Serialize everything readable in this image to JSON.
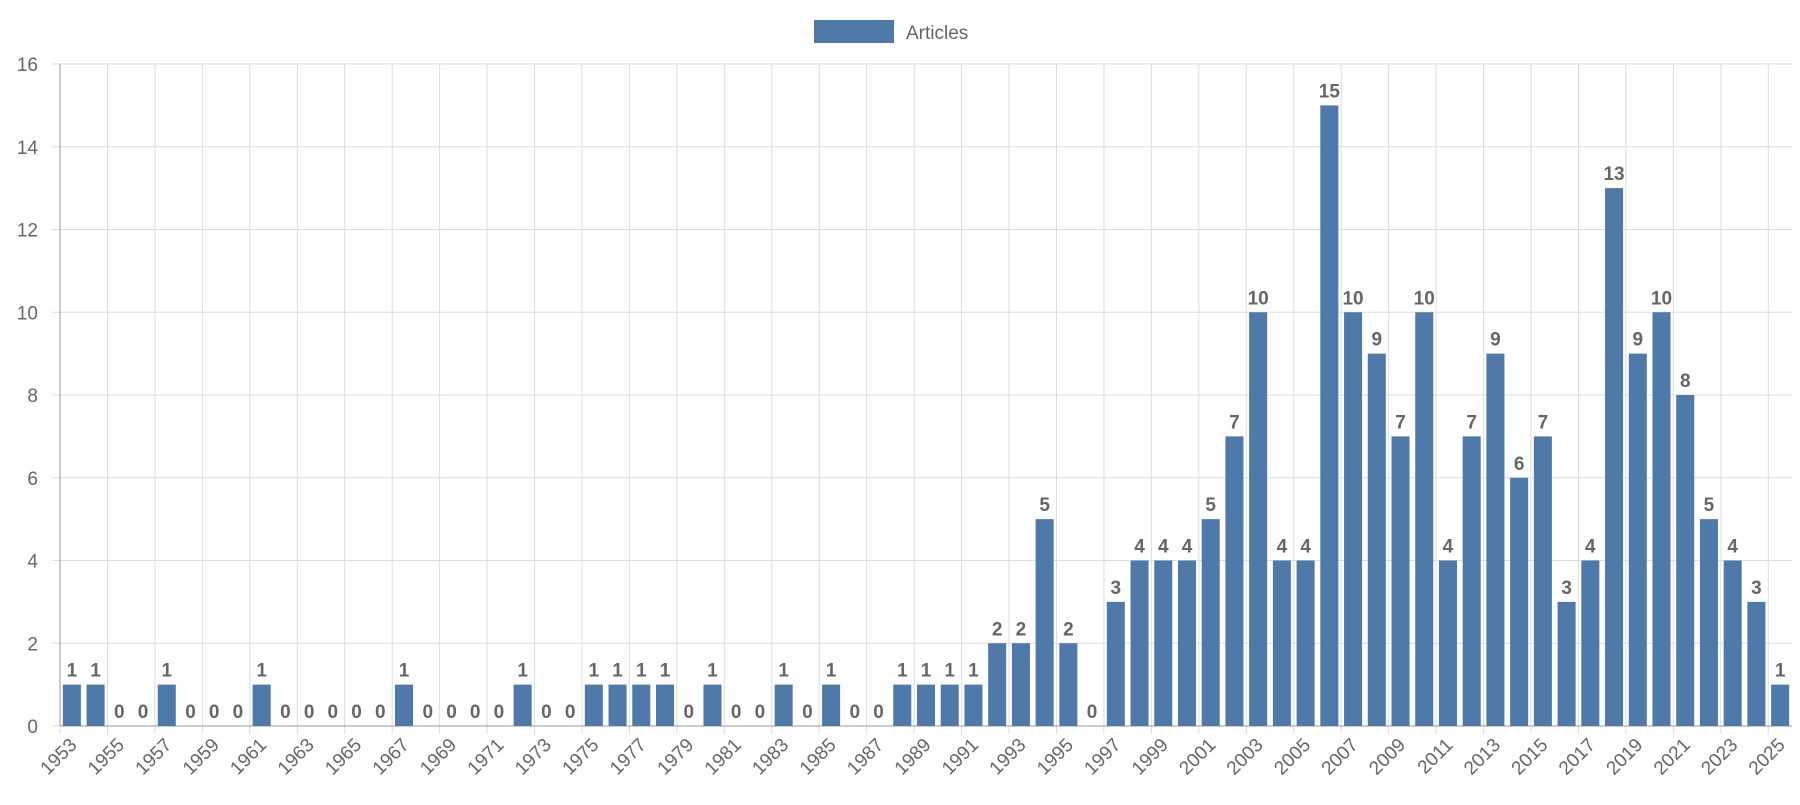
{
  "chart_data": {
    "type": "bar",
    "series": [
      {
        "name": "Articles",
        "color": "#4f79a8",
        "values": [
          1,
          1,
          0,
          0,
          1,
          0,
          0,
          0,
          1,
          0,
          0,
          0,
          0,
          0,
          1,
          0,
          0,
          0,
          0,
          1,
          0,
          0,
          1,
          1,
          1,
          1,
          0,
          1,
          0,
          0,
          1,
          0,
          1,
          0,
          0,
          1,
          1,
          1,
          1,
          2,
          2,
          5,
          2,
          0,
          3,
          4,
          4,
          4,
          5,
          7,
          10,
          4,
          4,
          15,
          10,
          9,
          7,
          10,
          4,
          7,
          9,
          6,
          7,
          3,
          4,
          13,
          9,
          10,
          8,
          5,
          4,
          3,
          1
        ]
      }
    ],
    "categories": [
      "1953",
      null,
      "1955",
      null,
      "1957",
      null,
      "1959",
      null,
      "1961",
      null,
      "1963",
      null,
      "1965",
      null,
      "1967",
      null,
      "1969",
      null,
      "1971",
      null,
      "1973",
      null,
      "1975",
      null,
      "1977",
      null,
      "1979",
      null,
      "1981",
      null,
      "1983",
      null,
      "1985",
      null,
      "1987",
      null,
      "1989",
      null,
      "1991",
      null,
      "1993",
      null,
      "1995",
      null,
      "1997",
      null,
      "1999",
      null,
      "2001",
      null,
      "2003",
      null,
      "2005",
      null,
      "2007",
      null,
      "2009",
      null,
      "2011",
      null,
      "2013",
      null,
      "2015",
      null,
      "2017",
      null,
      "2019",
      null,
      "2021",
      null,
      "2023",
      null,
      "2025"
    ],
    "ylim": [
      0,
      16
    ],
    "yticks": [
      0,
      2,
      4,
      6,
      8,
      10,
      12,
      14,
      16
    ],
    "grid": true,
    "legend": "top"
  }
}
